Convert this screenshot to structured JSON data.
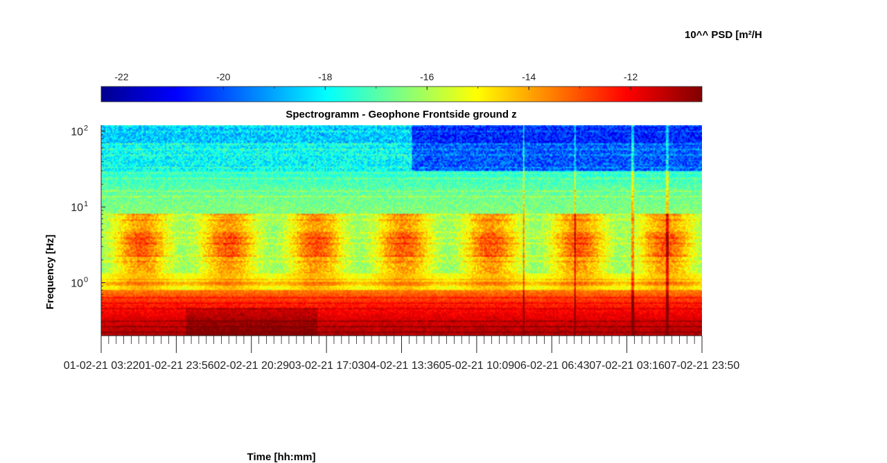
{
  "chart_data": {
    "type": "heatmap",
    "title": "Spectrogramm - Geophone Frontside ground z",
    "xlabel": "Time [hh:mm]",
    "ylabel": "Frequency [Hz]",
    "yscale": "log",
    "ylim": [
      0.2,
      120
    ],
    "y_tick_labels": [
      {
        "base": "10",
        "exp": "2",
        "value": 100
      },
      {
        "base": "10",
        "exp": "1",
        "value": 10
      },
      {
        "base": "10",
        "exp": "0",
        "value": 1
      }
    ],
    "x_tick_labels": [
      "01-02-21 03:22",
      "01-02-21 23:56",
      "02-02-21 20:29",
      "03-02-21 17:03",
      "04-02-21 13:36",
      "05-02-21 10:09",
      "06-02-21 06:43",
      "07-02-21 03:16",
      "07-02-21 23:50"
    ],
    "colorbar": {
      "label": "10^^ PSD [m²/H",
      "ticks": [
        "-22",
        "-20",
        "-18",
        "-16",
        "-14",
        "-12"
      ],
      "tick_values": [
        -22,
        -20,
        -18,
        -16,
        -14,
        -12
      ],
      "range": [
        -22.4,
        -10.6
      ],
      "colormap": "jet",
      "position": "top"
    },
    "grid": false,
    "description_values": {
      "psd_low_freq_band": -12,
      "psd_mid_band_day": -14.5,
      "psd_high_freq_band": -19
    }
  }
}
